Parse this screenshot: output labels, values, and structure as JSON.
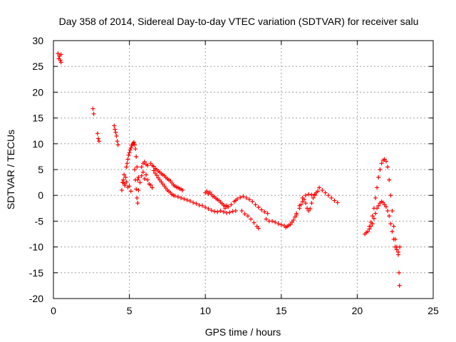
{
  "chart_data": {
    "type": "scatter",
    "title": "Day 358 of 2014, Sidereal Day-to-day VTEC variation (SDTVAR) for receiver salu",
    "xlabel": "GPS time / hours",
    "ylabel": "SDTVAR / TECUs",
    "xlim": [
      0,
      25
    ],
    "ylim": [
      -20,
      30
    ],
    "xticks": [
      0,
      5,
      10,
      15,
      20,
      25
    ],
    "yticks": [
      -20,
      -15,
      -10,
      -5,
      0,
      5,
      10,
      15,
      20,
      25,
      30
    ],
    "grid": true,
    "marker": "+",
    "color": "#ff0000",
    "series": [
      {
        "name": "SDTVAR",
        "points": [
          [
            0.3,
            27.5
          ],
          [
            0.35,
            26.5
          ],
          [
            0.4,
            27.0
          ],
          [
            0.45,
            26.2
          ],
          [
            0.5,
            27.3
          ],
          [
            0.5,
            25.8
          ],
          [
            2.6,
            16.8
          ],
          [
            2.65,
            15.8
          ],
          [
            2.9,
            12.0
          ],
          [
            2.95,
            11.0
          ],
          [
            3.0,
            10.5
          ],
          [
            4.0,
            13.5
          ],
          [
            4.05,
            12.8
          ],
          [
            4.1,
            12.2
          ],
          [
            4.15,
            11.5
          ],
          [
            4.2,
            10.5
          ],
          [
            4.25,
            9.8
          ],
          [
            4.5,
            1.0
          ],
          [
            4.55,
            2.5
          ],
          [
            4.6,
            3.0
          ],
          [
            4.65,
            4.0
          ],
          [
            4.7,
            2.2
          ],
          [
            4.75,
            3.5
          ],
          [
            4.8,
            5.5
          ],
          [
            4.85,
            6.2
          ],
          [
            4.9,
            7.0
          ],
          [
            4.95,
            7.8
          ],
          [
            5.0,
            8.3
          ],
          [
            5.05,
            8.8
          ],
          [
            5.1,
            9.2
          ],
          [
            5.15,
            9.6
          ],
          [
            5.2,
            9.9
          ],
          [
            5.25,
            10.1
          ],
          [
            5.3,
            10.3
          ],
          [
            5.35,
            9.8
          ],
          [
            5.4,
            9.0
          ],
          [
            5.45,
            7.5
          ],
          [
            5.5,
            5.5
          ],
          [
            5.55,
            3.0
          ],
          [
            5.6,
            1.0
          ],
          [
            4.6,
            2.5
          ],
          [
            4.7,
            1.9
          ],
          [
            4.8,
            2.6
          ],
          [
            4.9,
            1.6
          ],
          [
            5.0,
            1.8
          ],
          [
            5.1,
            0.8
          ],
          [
            5.35,
            5.0
          ],
          [
            5.4,
            3.0
          ],
          [
            5.45,
            1.2
          ],
          [
            5.5,
            -0.5
          ],
          [
            5.55,
            -1.5
          ],
          [
            5.6,
            3.5
          ],
          [
            5.7,
            2.5
          ],
          [
            5.8,
            3.8
          ],
          [
            5.9,
            4.5
          ],
          [
            6.0,
            3.2
          ],
          [
            6.1,
            4.0
          ],
          [
            6.2,
            3.0
          ],
          [
            6.3,
            2.2
          ],
          [
            6.4,
            2.0
          ],
          [
            6.5,
            1.5
          ],
          [
            5.8,
            5.5
          ],
          [
            5.9,
            6.2
          ],
          [
            6.0,
            6.5
          ],
          [
            6.1,
            6.0
          ],
          [
            6.2,
            5.8
          ],
          [
            6.4,
            6.2
          ],
          [
            6.5,
            5.8
          ],
          [
            6.6,
            5.6
          ],
          [
            6.7,
            5.2
          ],
          [
            6.8,
            5.0
          ],
          [
            6.9,
            4.7
          ],
          [
            7.0,
            4.5
          ],
          [
            7.1,
            4.2
          ],
          [
            7.2,
            4.0
          ],
          [
            7.3,
            3.8
          ],
          [
            7.4,
            3.5
          ],
          [
            7.5,
            3.2
          ],
          [
            7.6,
            3.0
          ],
          [
            7.7,
            2.8
          ],
          [
            7.8,
            2.4
          ],
          [
            7.9,
            2.0
          ],
          [
            8.0,
            1.8
          ],
          [
            8.1,
            1.6
          ],
          [
            8.2,
            1.5
          ],
          [
            8.3,
            1.3
          ],
          [
            8.4,
            1.2
          ],
          [
            8.5,
            1.0
          ],
          [
            6.6,
            4.8
          ],
          [
            6.7,
            4.3
          ],
          [
            6.8,
            3.9
          ],
          [
            6.9,
            3.4
          ],
          [
            7.0,
            3.0
          ],
          [
            7.1,
            2.6
          ],
          [
            7.2,
            2.2
          ],
          [
            7.3,
            1.8
          ],
          [
            7.4,
            1.4
          ],
          [
            7.5,
            1.0
          ],
          [
            7.6,
            0.8
          ],
          [
            7.7,
            0.5
          ],
          [
            7.8,
            0.2
          ],
          [
            7.9,
            0.0
          ],
          [
            8.0,
            -0.1
          ],
          [
            8.2,
            -0.3
          ],
          [
            8.4,
            -0.5
          ],
          [
            8.6,
            -0.7
          ],
          [
            8.8,
            -0.9
          ],
          [
            9.0,
            -1.1
          ],
          [
            9.2,
            -1.4
          ],
          [
            9.4,
            -1.6
          ],
          [
            9.6,
            -1.9
          ],
          [
            9.8,
            -2.0
          ],
          [
            10.0,
            -2.3
          ],
          [
            10.2,
            -2.6
          ],
          [
            10.4,
            -2.9
          ],
          [
            10.6,
            -3.1
          ],
          [
            10.8,
            -3.2
          ],
          [
            11.0,
            -3.0
          ],
          [
            11.2,
            -3.2
          ],
          [
            11.4,
            -3.4
          ],
          [
            11.6,
            -3.3
          ],
          [
            11.8,
            -3.1
          ],
          [
            12.0,
            -3.0
          ],
          [
            10.0,
            0.5
          ],
          [
            10.1,
            0.8
          ],
          [
            10.2,
            0.3
          ],
          [
            10.3,
            0.6
          ],
          [
            10.4,
            0.2
          ],
          [
            10.5,
            -0.2
          ],
          [
            10.6,
            -0.3
          ],
          [
            10.7,
            -0.6
          ],
          [
            10.8,
            -0.8
          ],
          [
            10.9,
            -1.0
          ],
          [
            11.0,
            -1.3
          ],
          [
            11.1,
            -1.6
          ],
          [
            11.2,
            -1.9
          ],
          [
            11.3,
            -2.1
          ],
          [
            11.4,
            -2.0
          ],
          [
            11.5,
            -2.2
          ],
          [
            11.3,
            -2.5
          ],
          [
            11.5,
            -2.2
          ],
          [
            11.7,
            -1.8
          ],
          [
            11.9,
            -1.2
          ],
          [
            12.0,
            -1.0
          ],
          [
            12.1,
            -0.7
          ],
          [
            12.3,
            -0.4
          ],
          [
            12.5,
            -0.2
          ],
          [
            12.7,
            -0.5
          ],
          [
            12.9,
            -0.8
          ],
          [
            13.1,
            -1.2
          ],
          [
            13.3,
            -1.8
          ],
          [
            13.5,
            -2.3
          ],
          [
            13.7,
            -2.8
          ],
          [
            13.9,
            -3.2
          ],
          [
            14.1,
            -3.5
          ],
          [
            12.4,
            -3.0
          ],
          [
            12.6,
            -3.6
          ],
          [
            12.8,
            -4.0
          ],
          [
            13.0,
            -4.6
          ],
          [
            13.2,
            -5.3
          ],
          [
            13.4,
            -6.0
          ],
          [
            13.5,
            -6.4
          ],
          [
            14.0,
            -4.6
          ],
          [
            14.2,
            -5.0
          ],
          [
            14.4,
            -5.0
          ],
          [
            14.6,
            -5.2
          ],
          [
            14.8,
            -5.5
          ],
          [
            15.0,
            -5.7
          ],
          [
            15.2,
            -5.9
          ],
          [
            15.4,
            -6.0
          ],
          [
            15.6,
            -5.6
          ],
          [
            15.8,
            -4.8
          ],
          [
            16.0,
            -3.8
          ],
          [
            16.2,
            -2.5
          ],
          [
            16.3,
            -1.8
          ],
          [
            16.4,
            -1.2
          ],
          [
            16.5,
            -0.8
          ],
          [
            16.6,
            -1.5
          ],
          [
            16.7,
            -2.5
          ],
          [
            16.8,
            -3.0
          ],
          [
            16.9,
            -2.6
          ],
          [
            17.0,
            -1.5
          ],
          [
            17.1,
            -0.5
          ],
          [
            17.2,
            0.0
          ],
          [
            17.3,
            0.5
          ],
          [
            17.4,
            0.8
          ],
          [
            15.3,
            -6.2
          ],
          [
            15.5,
            -5.8
          ],
          [
            15.7,
            -5.2
          ],
          [
            15.9,
            -4.2
          ],
          [
            16.0,
            -3.5
          ],
          [
            16.2,
            -2.0
          ],
          [
            16.4,
            -0.5
          ],
          [
            16.6,
            0.0
          ],
          [
            16.8,
            0.2
          ],
          [
            17.0,
            0.1
          ],
          [
            17.2,
            0.2
          ],
          [
            17.5,
            1.5
          ],
          [
            17.7,
            1.0
          ],
          [
            17.9,
            0.5
          ],
          [
            18.1,
            0.0
          ],
          [
            18.3,
            -0.5
          ],
          [
            18.5,
            -1.0
          ],
          [
            18.7,
            -1.4
          ],
          [
            20.5,
            -7.5
          ],
          [
            20.6,
            -7.2
          ],
          [
            20.7,
            -7.0
          ],
          [
            20.8,
            -6.5
          ],
          [
            20.9,
            -6.0
          ],
          [
            21.0,
            -5.5
          ],
          [
            21.1,
            -4.5
          ],
          [
            21.2,
            -3.5
          ],
          [
            21.3,
            -2.5
          ],
          [
            21.4,
            -2.0
          ],
          [
            21.5,
            -1.5
          ],
          [
            21.6,
            -1.2
          ],
          [
            21.7,
            -1.4
          ],
          [
            21.8,
            -1.8
          ],
          [
            21.9,
            -2.2
          ],
          [
            22.0,
            -3.0
          ],
          [
            22.1,
            -4.0
          ],
          [
            22.2,
            -5.5
          ],
          [
            22.3,
            -7.0
          ],
          [
            22.4,
            -8.5
          ],
          [
            22.5,
            -10.0
          ],
          [
            22.6,
            -10.5
          ],
          [
            22.7,
            -11.0
          ],
          [
            22.75,
            -15.0
          ],
          [
            22.78,
            -17.5
          ],
          [
            20.8,
            -6.0
          ],
          [
            20.9,
            -5.2
          ],
          [
            21.0,
            -4.0
          ],
          [
            21.1,
            -2.5
          ],
          [
            21.2,
            -0.5
          ],
          [
            21.3,
            1.5
          ],
          [
            21.4,
            3.5
          ],
          [
            21.5,
            5.0
          ],
          [
            21.6,
            6.2
          ],
          [
            21.7,
            6.8
          ],
          [
            21.8,
            7.0
          ],
          [
            21.9,
            6.6
          ],
          [
            22.0,
            5.5
          ],
          [
            22.1,
            3.0
          ],
          [
            22.2,
            0.0
          ],
          [
            22.3,
            -3.0
          ],
          [
            22.4,
            -6.0
          ],
          [
            22.5,
            -8.5
          ],
          [
            22.6,
            -10.0
          ],
          [
            22.7,
            -11.5
          ],
          [
            22.8,
            -10.0
          ]
        ]
      }
    ]
  }
}
